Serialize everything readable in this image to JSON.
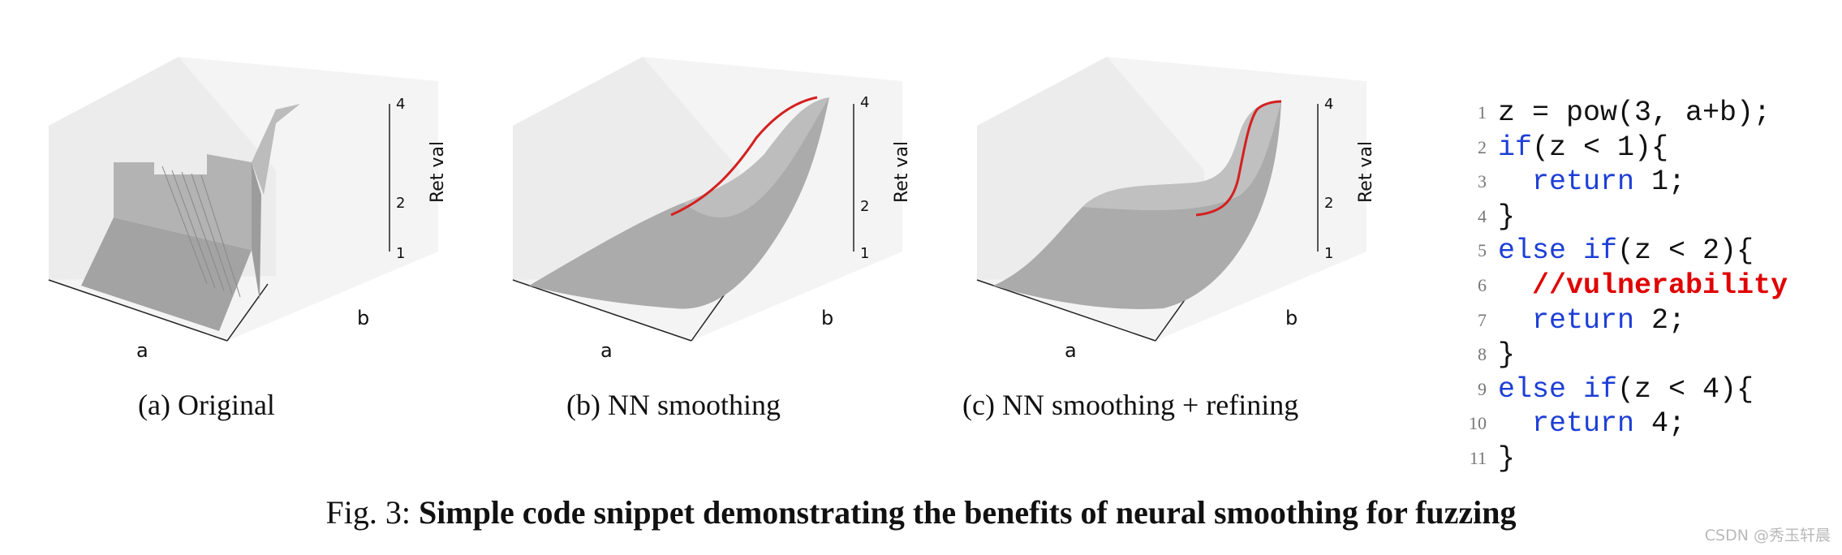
{
  "panels": [
    {
      "id": "a",
      "caption": "(a) Original",
      "axis_a": "a",
      "axis_b": "b",
      "axis_z": "Ret val",
      "ticks": [
        "1",
        "2",
        "4"
      ],
      "curve": "none"
    },
    {
      "id": "b",
      "caption": "(b) NN smoothing",
      "axis_a": "a",
      "axis_b": "b",
      "axis_z": "Ret val",
      "ticks": [
        "1",
        "2",
        "4"
      ],
      "curve": "gradient"
    },
    {
      "id": "c",
      "caption": "(c) NN smoothing + refining",
      "axis_a": "a",
      "axis_b": "b",
      "axis_z": "Ret val",
      "ticks": [
        "1",
        "2",
        "4"
      ],
      "curve": "gradient"
    }
  ],
  "code": {
    "lines": [
      {
        "n": "1",
        "parts": [
          {
            "t": "z = pow(3, a+b);",
            "c": "plain"
          }
        ]
      },
      {
        "n": "2",
        "parts": [
          {
            "t": "if",
            "c": "kw"
          },
          {
            "t": "(z < 1){",
            "c": "plain"
          }
        ]
      },
      {
        "n": "3",
        "parts": [
          {
            "t": "  ",
            "c": "plain"
          },
          {
            "t": "return",
            "c": "kw"
          },
          {
            "t": " 1;",
            "c": "plain"
          }
        ]
      },
      {
        "n": "4",
        "parts": [
          {
            "t": "}",
            "c": "plain"
          }
        ]
      },
      {
        "n": "5",
        "parts": [
          {
            "t": "else if",
            "c": "kw"
          },
          {
            "t": "(z < 2){",
            "c": "plain"
          }
        ]
      },
      {
        "n": "6",
        "parts": [
          {
            "t": "  ",
            "c": "plain"
          },
          {
            "t": "//vulnerability",
            "c": "vuln"
          }
        ]
      },
      {
        "n": "7",
        "parts": [
          {
            "t": "  ",
            "c": "plain"
          },
          {
            "t": "return",
            "c": "kw"
          },
          {
            "t": " 2;",
            "c": "plain"
          }
        ]
      },
      {
        "n": "8",
        "parts": [
          {
            "t": "}",
            "c": "plain"
          }
        ]
      },
      {
        "n": "9",
        "parts": [
          {
            "t": "else if",
            "c": "kw"
          },
          {
            "t": "(z < 4){",
            "c": "plain"
          }
        ]
      },
      {
        "n": "10",
        "parts": [
          {
            "t": "  ",
            "c": "plain"
          },
          {
            "t": "return",
            "c": "kw"
          },
          {
            "t": " 4;",
            "c": "plain"
          }
        ]
      },
      {
        "n": "11",
        "parts": [
          {
            "t": "}",
            "c": "plain"
          }
        ]
      }
    ]
  },
  "figure": {
    "label": "Fig. 3:",
    "title": "Simple code snippet demonstrating the benefits of neural smoothing for fuzzing"
  },
  "watermark": "CSDN @秀玉轩晨",
  "colors": {
    "keyword": "#1d3fd6",
    "vuln": "#e00000",
    "surface": "#a9a9a9",
    "curve": "#d42020"
  }
}
